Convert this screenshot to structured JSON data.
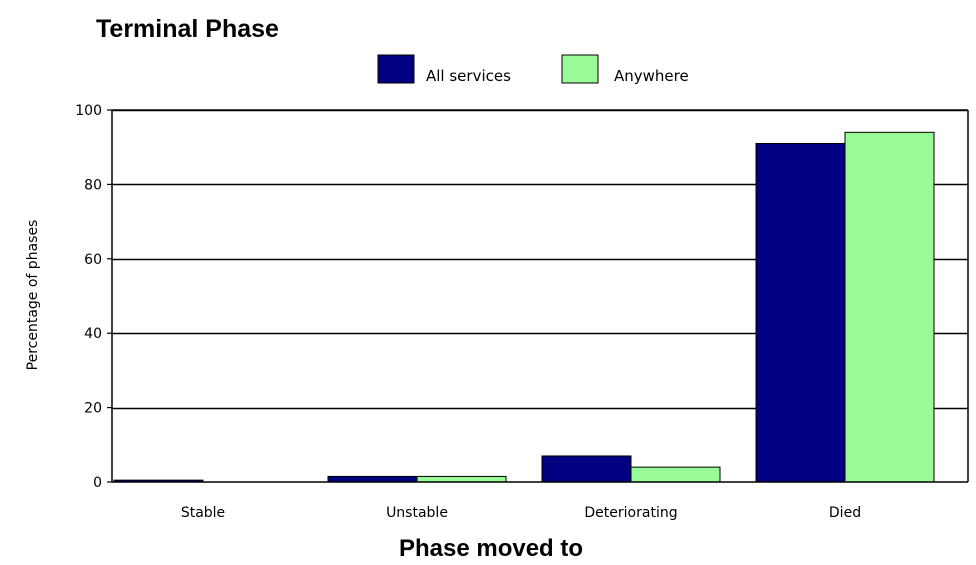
{
  "chart_data": {
    "type": "bar",
    "title": "Terminal Phase",
    "xlabel": "Phase moved to",
    "ylabel": "Percentage of phases",
    "categories": [
      "Stable",
      "Unstable",
      "Deteriorating",
      "Died"
    ],
    "series": [
      {
        "name": "All services",
        "color": "#000080",
        "values": [
          0.5,
          1.5,
          7,
          91
        ]
      },
      {
        "name": "Anywhere",
        "color": "#98fb98",
        "values": [
          0,
          1.5,
          4,
          94
        ]
      }
    ],
    "ylim": [
      0,
      100
    ],
    "yticks": [
      0,
      20,
      40,
      60,
      80,
      100
    ],
    "grid": true,
    "legend_position": "top-center"
  }
}
